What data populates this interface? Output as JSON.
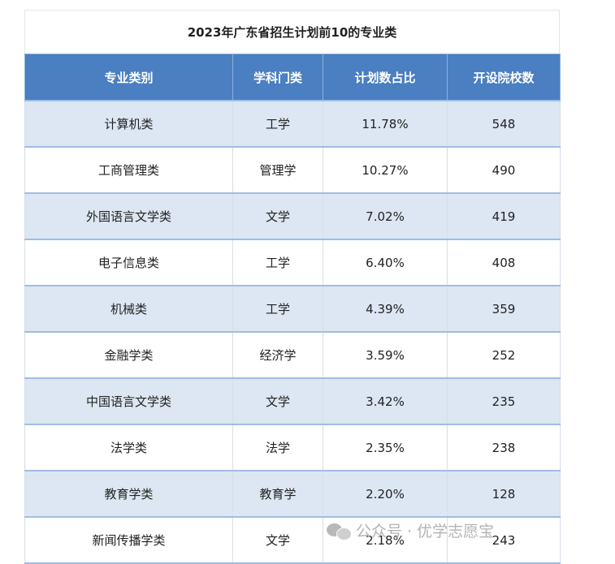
{
  "title": "2023年广东省招生计划前10的专业类",
  "headers": [
    "专业类别",
    "学科门类",
    "计划数占比",
    "开设院校数"
  ],
  "rows": [
    [
      "计算机类",
      "工学",
      "11.78%",
      "548"
    ],
    [
      "工商管理类",
      "管理学",
      "10.27%",
      "490"
    ],
    [
      "外国语言文学类",
      "文学",
      "7.02%",
      "419"
    ],
    [
      "电子信息类",
      "工学",
      "6.40%",
      "408"
    ],
    [
      "机械类",
      "工学",
      "4.39%",
      "359"
    ],
    [
      "金融学类",
      "经济学",
      "3.59%",
      "252"
    ],
    [
      "中国语言文学类",
      "文学",
      "3.42%",
      "235"
    ],
    [
      "法学类",
      "法学",
      "2.35%",
      "238"
    ],
    [
      "教育学类",
      "教育学",
      "2.20%",
      "128"
    ],
    [
      "新闻传播学类",
      "文学",
      "2.18%",
      "243"
    ]
  ],
  "watermark": {
    "icon": "wechat-icon",
    "text": "公众号 · 优学志愿宝"
  },
  "colors": {
    "header_bg": "#4a7fc1",
    "row_alt_bg": "#dce7f3",
    "row_border": "#9fbde4"
  }
}
